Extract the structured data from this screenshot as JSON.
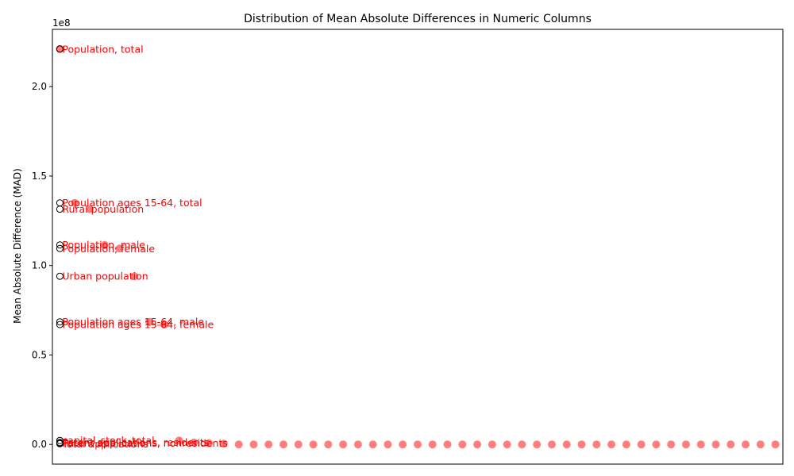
{
  "chart_data": {
    "type": "scatter",
    "title": "Distribution of Mean Absolute Differences in Numeric Columns",
    "xlabel": "",
    "ylabel": "Mean Absolute Difference (MAD)",
    "y_offset_label": "1e8",
    "y_scale_factor": 100000000,
    "ylim": [
      -0.11,
      2.32
    ],
    "xlim": [
      -0.5,
      48.5
    ],
    "yticks": [
      {
        "value": 0.0,
        "label": "0.0"
      },
      {
        "value": 0.5,
        "label": "0.5"
      },
      {
        "value": 1.0,
        "label": "1.0"
      },
      {
        "value": 1.5,
        "label": "1.5"
      },
      {
        "value": 2.0,
        "label": "2.0"
      }
    ],
    "grid": false,
    "marker_color": "#ff0000",
    "marker_alpha": 0.5,
    "label_color": "#ff0000",
    "points": [
      {
        "x": 0,
        "y": 2.21,
        "label": "Population, total"
      },
      {
        "x": 1,
        "y": 1.35,
        "label": "Population ages 15-64, total"
      },
      {
        "x": 2,
        "y": 1.315,
        "label": "Rural population"
      },
      {
        "x": 3,
        "y": 1.115,
        "label": "Population, male"
      },
      {
        "x": 4,
        "y": 1.095,
        "label": "Population, female"
      },
      {
        "x": 5,
        "y": 0.94,
        "label": "Urban population"
      },
      {
        "x": 6,
        "y": 0.685,
        "label": "Population ages 15-64, male"
      },
      {
        "x": 7,
        "y": 0.67,
        "label": "Population ages 15-64, female"
      },
      {
        "x": 8,
        "y": 0.022,
        "label": "capital_stock_total"
      },
      {
        "x": 9,
        "y": 0.011,
        "label": "Patent applications, residents"
      },
      {
        "x": 10,
        "y": 0.007,
        "label": "Patent applications, nonresidents"
      },
      {
        "x": 11,
        "y": 0.004,
        "label": "Total applications"
      },
      {
        "x": 12,
        "y": 0.0,
        "label": ""
      },
      {
        "x": 13,
        "y": 0.0,
        "label": ""
      },
      {
        "x": 14,
        "y": 0.0,
        "label": ""
      },
      {
        "x": 15,
        "y": 0.0,
        "label": ""
      },
      {
        "x": 16,
        "y": 0.0,
        "label": ""
      },
      {
        "x": 17,
        "y": 0.0,
        "label": ""
      },
      {
        "x": 18,
        "y": 0.0,
        "label": ""
      },
      {
        "x": 19,
        "y": 0.0,
        "label": ""
      },
      {
        "x": 20,
        "y": 0.0,
        "label": ""
      },
      {
        "x": 21,
        "y": 0.0,
        "label": ""
      },
      {
        "x": 22,
        "y": 0.0,
        "label": ""
      },
      {
        "x": 23,
        "y": 0.0,
        "label": ""
      },
      {
        "x": 24,
        "y": 0.0,
        "label": ""
      },
      {
        "x": 25,
        "y": 0.0,
        "label": ""
      },
      {
        "x": 26,
        "y": 0.0,
        "label": ""
      },
      {
        "x": 27,
        "y": 0.0,
        "label": ""
      },
      {
        "x": 28,
        "y": 0.0,
        "label": ""
      },
      {
        "x": 29,
        "y": 0.0,
        "label": ""
      },
      {
        "x": 30,
        "y": 0.0,
        "label": ""
      },
      {
        "x": 31,
        "y": 0.0,
        "label": ""
      },
      {
        "x": 32,
        "y": 0.0,
        "label": ""
      },
      {
        "x": 33,
        "y": 0.0,
        "label": ""
      },
      {
        "x": 34,
        "y": 0.0,
        "label": ""
      },
      {
        "x": 35,
        "y": 0.0,
        "label": ""
      },
      {
        "x": 36,
        "y": 0.0,
        "label": ""
      },
      {
        "x": 37,
        "y": 0.0,
        "label": ""
      },
      {
        "x": 38,
        "y": 0.0,
        "label": ""
      },
      {
        "x": 39,
        "y": 0.0,
        "label": ""
      },
      {
        "x": 40,
        "y": 0.0,
        "label": ""
      },
      {
        "x": 41,
        "y": 0.0,
        "label": ""
      },
      {
        "x": 42,
        "y": 0.0,
        "label": ""
      },
      {
        "x": 43,
        "y": 0.0,
        "label": ""
      },
      {
        "x": 44,
        "y": 0.0,
        "label": ""
      },
      {
        "x": 45,
        "y": 0.0,
        "label": ""
      },
      {
        "x": 46,
        "y": 0.0,
        "label": ""
      },
      {
        "x": 47,
        "y": 0.0,
        "label": ""
      },
      {
        "x": 48,
        "y": 0.0,
        "label": ""
      }
    ]
  }
}
